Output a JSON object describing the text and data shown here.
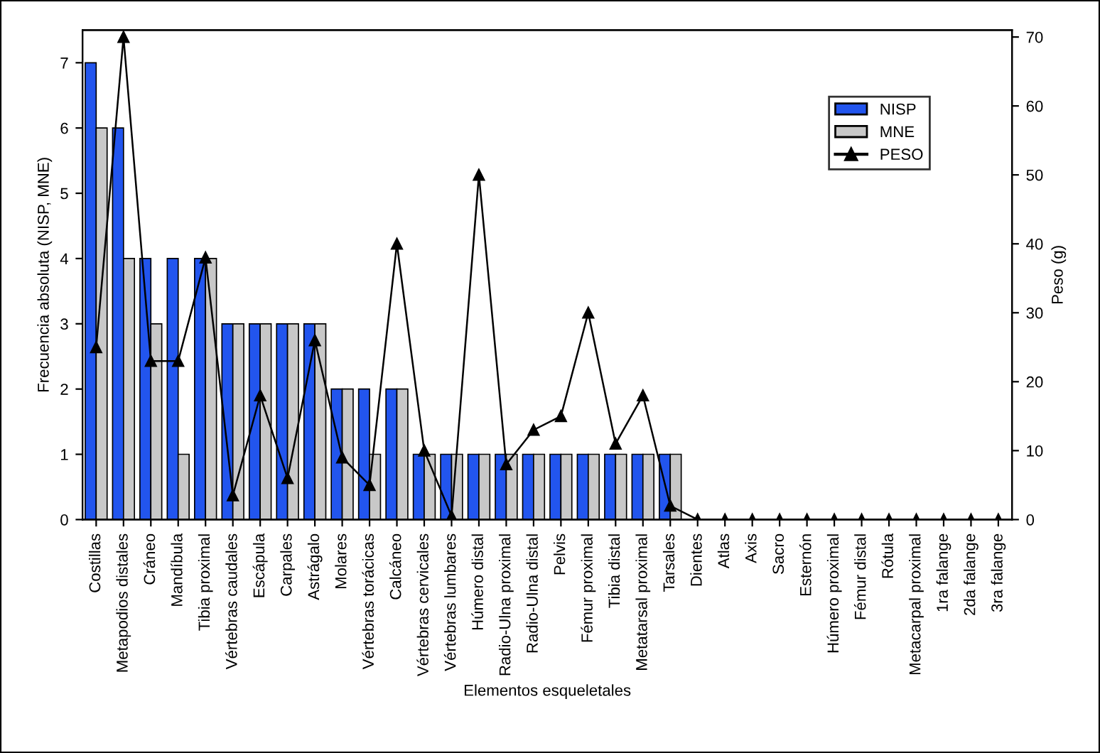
{
  "chart_data": {
    "type": "bar",
    "xlabel": "Elementos esqueletales",
    "ylabel": "Frecuencia absoluta (NISP, MNE)",
    "y2label": "Peso (g)",
    "categories": [
      "Costillas",
      "Metapodios distales",
      "Cráneo",
      "Mandíbula",
      "Tibia proximal",
      "Vértebras caudales",
      "Escápula",
      "Carpales",
      "Astrágalo",
      "Molares",
      "Vértebras torácicas",
      "Calcáneo",
      "Vértebras cervicales",
      "Vértebras lumbares",
      "Húmero distal",
      "Radio-Ulna proximal",
      "Radio-Ulna distal",
      "Pelvis",
      "Fémur proximal",
      "Tibia distal",
      "Metatarsal proximal",
      "Tarsales",
      "Dientes",
      "Atlas",
      "Axis",
      "Sacro",
      "Esternón",
      "Húmero proximal",
      "Fémur distal",
      "Rótula",
      "Metacarpal proximal",
      "1ra falange",
      "2da falange",
      "3ra falange"
    ],
    "series": [
      {
        "name": "NISP",
        "color": "#2255ee",
        "values": [
          7,
          6,
          4,
          4,
          4,
          3,
          3,
          3,
          3,
          2,
          2,
          2,
          1,
          1,
          1,
          1,
          1,
          1,
          1,
          1,
          1,
          1,
          0,
          0,
          0,
          0,
          0,
          0,
          0,
          0,
          0,
          0,
          0,
          0
        ]
      },
      {
        "name": "MNE",
        "color": "#c8c8c8",
        "values": [
          6,
          4,
          3,
          1,
          4,
          3,
          3,
          3,
          3,
          2,
          1,
          2,
          1,
          1,
          1,
          1,
          1,
          1,
          1,
          1,
          1,
          1,
          0,
          0,
          0,
          0,
          0,
          0,
          0,
          0,
          0,
          0,
          0,
          0
        ]
      },
      {
        "name": "PESO",
        "type": "line",
        "axis": "y2",
        "color": "#000000",
        "marker": "triangle",
        "values": [
          25,
          70,
          23,
          23,
          38,
          3.5,
          18,
          6,
          26,
          9,
          5,
          40,
          10,
          0.5,
          50,
          8,
          13,
          15,
          30,
          11,
          18,
          2,
          0,
          0,
          0,
          0,
          0,
          0,
          0,
          0,
          0,
          0,
          0,
          0
        ]
      }
    ],
    "ylim": [
      0,
      7.5
    ],
    "yticks": [
      0,
      1,
      2,
      3,
      4,
      5,
      6,
      7
    ],
    "y2lim": [
      0,
      71
    ],
    "y2ticks": [
      0,
      10,
      20,
      30,
      40,
      50,
      60,
      70
    ],
    "grid": false,
    "legend": "top right"
  }
}
